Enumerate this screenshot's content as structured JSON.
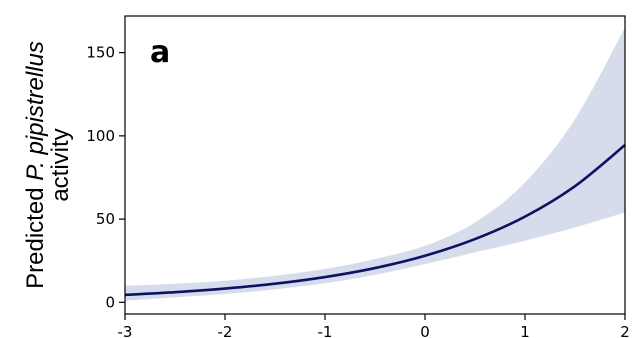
{
  "chart_data": {
    "type": "line",
    "title": "",
    "panel_label": "a",
    "ylabel": {
      "line1_prefix": "Predicted ",
      "line1_italic": "P. pipistrellus",
      "line2": "activity"
    },
    "xlabel": "",
    "xlim": [
      -3,
      2
    ],
    "ylim": [
      -7,
      172
    ],
    "xticks": [
      -3,
      -2,
      -1,
      0,
      1,
      2
    ],
    "xtick_labels": [
      "-3",
      "-2",
      "-1",
      "0",
      "1",
      "2"
    ],
    "yticks": [
      0,
      50,
      100,
      150
    ],
    "ytick_labels": [
      "0",
      "50",
      "100",
      "150"
    ],
    "grid": false,
    "series": [
      {
        "x": [
          -3,
          -2.5,
          -2,
          -1.5,
          -1,
          -0.5,
          0,
          0.5,
          1,
          1.5,
          2
        ],
        "y": [
          4.5,
          6.1,
          8.3,
          11.2,
          15.2,
          20.6,
          28,
          38,
          51.5,
          69.8,
          94.5
        ],
        "lower": [
          1,
          3,
          5,
          7.8,
          11.5,
          16.5,
          23,
          30,
          37,
          45,
          54
        ],
        "upper": [
          10,
          11.2,
          13,
          16,
          20,
          26,
          34,
          48,
          72,
          110,
          165
        ],
        "color": "#0d1263",
        "band_color": "#d6dceb"
      }
    ]
  }
}
